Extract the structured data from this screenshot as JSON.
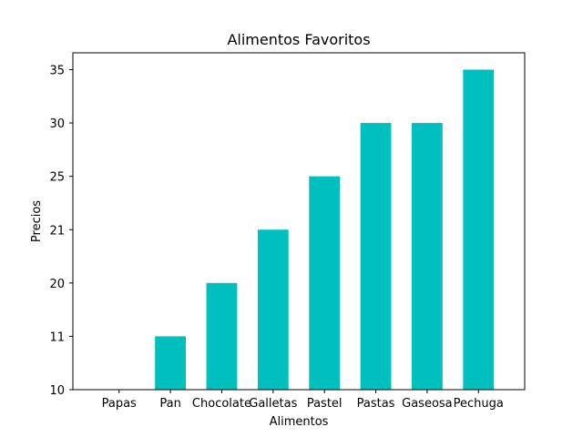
{
  "chart_data": {
    "type": "bar",
    "title": "Alimentos Favoritos",
    "xlabel": "Alimentos",
    "ylabel": "Precios",
    "categories": [
      "Papas",
      "Pan",
      "Chocolate",
      "Galletas",
      "Pastel",
      "Pastas",
      "Gaseosa",
      "Pechuga"
    ],
    "y_tick_labels": [
      "10",
      "11",
      "20",
      "21",
      "25",
      "30",
      "35"
    ],
    "values": [
      "10",
      "11",
      "20",
      "21",
      "25",
      "30",
      "30",
      "35"
    ],
    "bar_color": "#00bfbf",
    "grid": false,
    "legend": "none"
  }
}
